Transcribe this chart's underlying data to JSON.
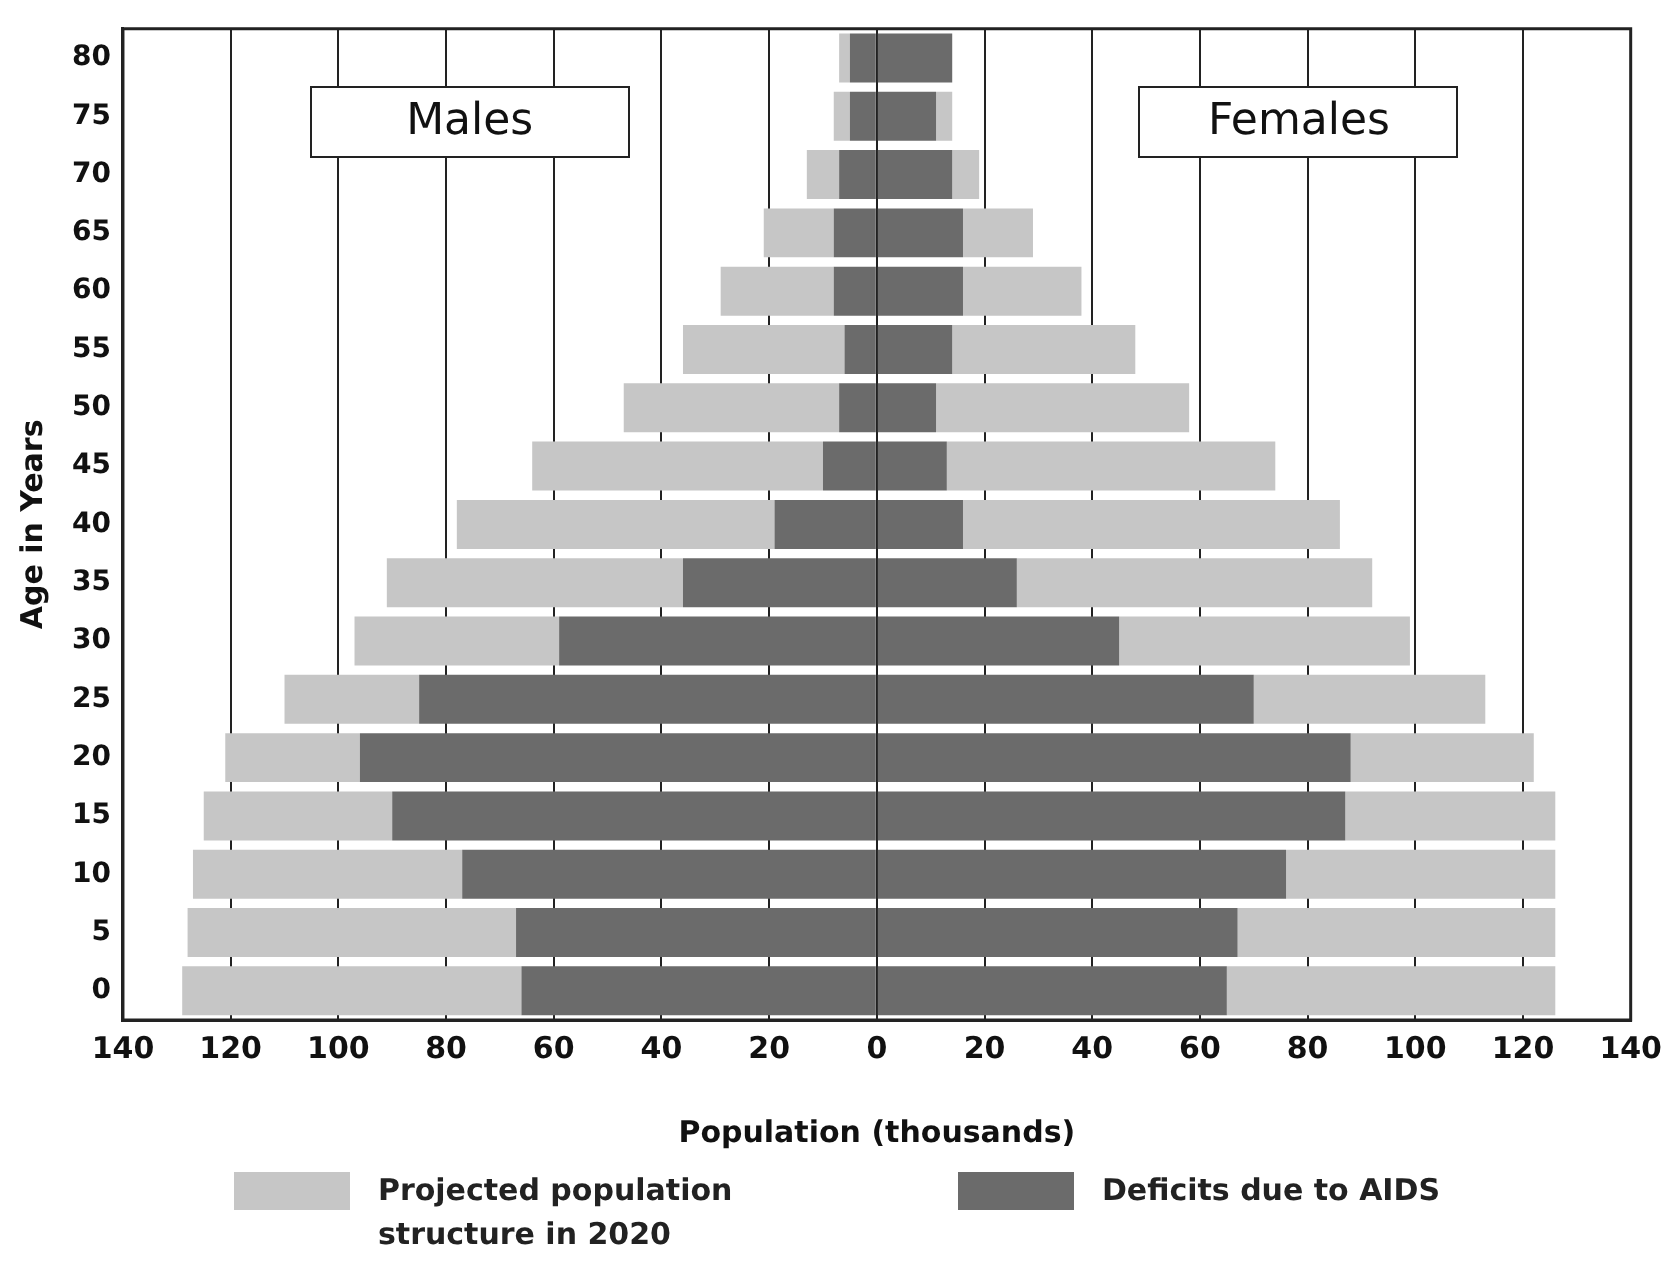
{
  "chart_data": {
    "type": "bar",
    "orientation": "horizontal",
    "stacked": true,
    "xlabel": "Population (thousands)",
    "ylabel": "Age in Years",
    "categories": [
      "80",
      "75",
      "70",
      "65",
      "60",
      "55",
      "50",
      "45",
      "40",
      "35",
      "30",
      "25",
      "20",
      "15",
      "10",
      "5",
      "0"
    ],
    "series": [
      {
        "name": "Deficits due to AIDS",
        "color": "#6b6b6b",
        "values": [
          -5,
          -5,
          -7,
          -8,
          -8,
          -6,
          -7,
          -10,
          -19,
          -36,
          -59,
          -85,
          -96,
          -90,
          -77,
          -67,
          -66
        ]
      },
      {
        "color": "#6b6b6b",
        "values": [
          14,
          11,
          14,
          16,
          16,
          14,
          11,
          13,
          16,
          26,
          45,
          70,
          88,
          87,
          76,
          67,
          65
        ]
      },
      {
        "name": "Projected population structure in 2020",
        "color": "#c6c6c6",
        "values": [
          -2,
          -3,
          -6,
          -13,
          -21,
          -30,
          -40,
          -54,
          -59,
          -55,
          -38,
          -25,
          -25,
          -35,
          -50,
          -61,
          -63
        ]
      },
      {
        "color": "#c6c6c6",
        "values": [
          0,
          3,
          5,
          13,
          22,
          34,
          47,
          61,
          70,
          66,
          54,
          43,
          34,
          39,
          50,
          59,
          61
        ]
      }
    ],
    "xlim": [
      -140,
      140
    ],
    "xticks": [
      {
        "value": -140,
        "label": "140"
      },
      {
        "value": -120,
        "label": "120"
      },
      {
        "value": -100,
        "label": "100"
      },
      {
        "value": -80,
        "label": "80"
      },
      {
        "value": -60,
        "label": "60"
      },
      {
        "value": -40,
        "label": "40"
      },
      {
        "value": -20,
        "label": "20"
      },
      0,
      20,
      40,
      60,
      80,
      100,
      120,
      140
    ],
    "annotations": [
      "Males",
      "Females"
    ],
    "grid": "x",
    "legend": "bottom"
  }
}
